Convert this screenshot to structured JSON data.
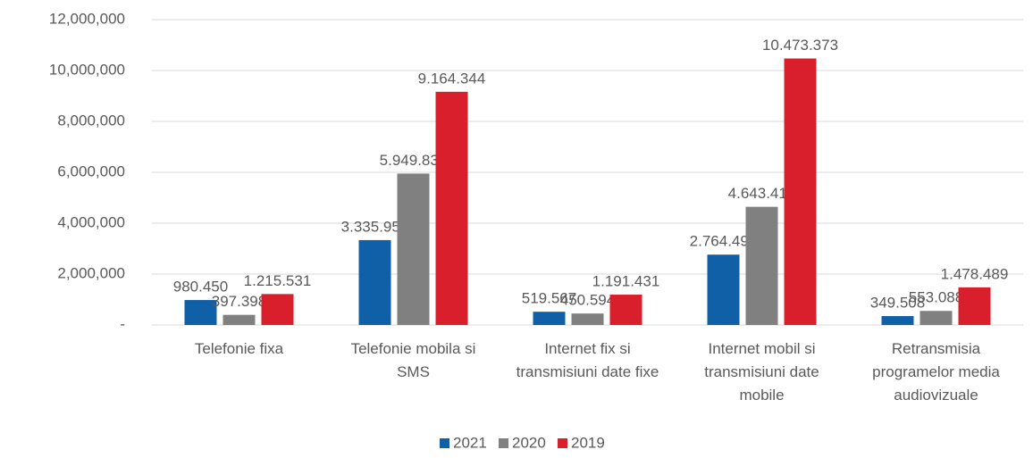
{
  "chart_data": {
    "type": "bar",
    "categories": [
      "Telefonie fixa",
      "Telefonie mobila si SMS",
      "Internet fix si transmisiuni date fixe",
      "Internet mobil si transmisiuni date mobile",
      "Retransmisia programelor media audiovizuale"
    ],
    "series": [
      {
        "name": "2021",
        "color": "#1060a8",
        "values": [
          980450,
          3335954,
          519567,
          2764493,
          349508
        ],
        "value_labels": [
          "980.450",
          "3.335.954",
          "519.567",
          "2.764.493",
          "349.508"
        ]
      },
      {
        "name": "2020",
        "color": "#808080",
        "values": [
          397398,
          5949834,
          450594,
          4643419,
          553088
        ],
        "value_labels": [
          "397.398",
          "5.949.834",
          "450.594",
          "4.643.419",
          "553.088"
        ]
      },
      {
        "name": "2019",
        "color": "#d91f2b",
        "values": [
          1215531,
          9164344,
          1191431,
          10473373,
          1478489
        ],
        "value_labels": [
          "1.215.531",
          "9.164.344",
          "1.191.431",
          "10.473.373",
          "1.478.489"
        ]
      }
    ],
    "ylim": [
      0,
      12000000
    ],
    "yticks": [
      {
        "value": 0,
        "label": "-"
      },
      {
        "value": 2000000,
        "label": "2,000,000"
      },
      {
        "value": 4000000,
        "label": "4,000,000"
      },
      {
        "value": 6000000,
        "label": "6,000,000"
      },
      {
        "value": 8000000,
        "label": "8,000,000"
      },
      {
        "value": 10000000,
        "label": "10,000,000"
      },
      {
        "value": 12000000,
        "label": "12,000,000"
      }
    ],
    "grid": true,
    "legend": "bottom"
  }
}
